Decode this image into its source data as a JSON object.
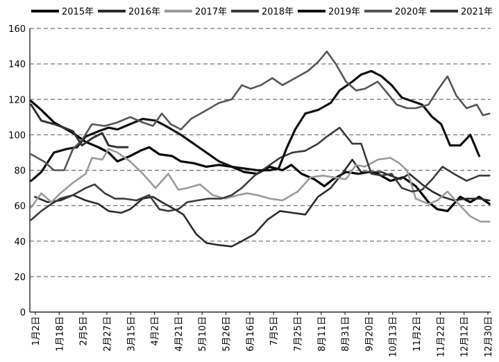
{
  "chart_data": {
    "type": "line",
    "title": "",
    "xlabel": "",
    "ylabel": "",
    "ylim": [
      0,
      160
    ],
    "yticks": [
      0,
      20,
      40,
      60,
      80,
      100,
      120,
      140,
      160
    ],
    "grid": "horizontal-dashed",
    "legend_position": "top",
    "x_tick_labels": [
      "1月2日",
      "1月18日",
      "2月5日",
      "2月27日",
      "3月15日",
      "4月2日",
      "4月21日",
      "5月10日",
      "5月26日",
      "6月16日",
      "7月5日",
      "7月25日",
      "8月11日",
      "8月31日",
      "9月20日",
      "10月13日",
      "11月2日",
      "11月22日",
      "12月12日",
      "12月30日"
    ],
    "x_range": [
      1,
      364
    ],
    "series": [
      {
        "name": "2015年",
        "color": "#000000",
        "width": 3.2,
        "points": [
          [
            2,
            119
          ],
          [
            10,
            114
          ],
          [
            20,
            107
          ],
          [
            35,
            101
          ],
          [
            45,
            96
          ],
          [
            55,
            93
          ],
          [
            63,
            90
          ],
          [
            70,
            85
          ],
          [
            80,
            88
          ],
          [
            88,
            91
          ],
          [
            95,
            93
          ],
          [
            103,
            89
          ],
          [
            113,
            88
          ],
          [
            120,
            85
          ],
          [
            130,
            84
          ],
          [
            140,
            82
          ],
          [
            150,
            83
          ],
          [
            160,
            82
          ],
          [
            170,
            79
          ],
          [
            180,
            78
          ],
          [
            185,
            80
          ],
          [
            190,
            82
          ],
          [
            200,
            80
          ],
          [
            207,
            83
          ],
          [
            215,
            78
          ],
          [
            225,
            75
          ],
          [
            233,
            71
          ],
          [
            240,
            75
          ],
          [
            250,
            79
          ],
          [
            260,
            78
          ],
          [
            268,
            79
          ],
          [
            275,
            78
          ],
          [
            285,
            74
          ],
          [
            295,
            76
          ],
          [
            305,
            71
          ],
          [
            315,
            62
          ],
          [
            322,
            58
          ],
          [
            330,
            57
          ],
          [
            340,
            65
          ],
          [
            348,
            62
          ],
          [
            355,
            65
          ],
          [
            363,
            61
          ]
        ]
      },
      {
        "name": "2016年",
        "color": "#2b2b2b",
        "width": 2.6,
        "points": [
          [
            5,
            65
          ],
          [
            15,
            62
          ],
          [
            25,
            63
          ],
          [
            35,
            66
          ],
          [
            45,
            63
          ],
          [
            55,
            61
          ],
          [
            63,
            57
          ],
          [
            73,
            56
          ],
          [
            80,
            58
          ],
          [
            90,
            64
          ],
          [
            98,
            65
          ],
          [
            105,
            62
          ],
          [
            115,
            58
          ],
          [
            122,
            55
          ],
          [
            132,
            44
          ],
          [
            140,
            39
          ],
          [
            148,
            38
          ],
          [
            160,
            37
          ],
          [
            168,
            40
          ],
          [
            178,
            44
          ],
          [
            188,
            52
          ],
          [
            198,
            57
          ],
          [
            208,
            56
          ],
          [
            218,
            55
          ],
          [
            228,
            65
          ],
          [
            238,
            70
          ],
          [
            248,
            79
          ],
          [
            255,
            86
          ],
          [
            262,
            79
          ],
          [
            270,
            79
          ],
          [
            278,
            79
          ],
          [
            285,
            77
          ],
          [
            293,
            75
          ],
          [
            300,
            78
          ],
          [
            310,
            72
          ],
          [
            318,
            68
          ],
          [
            326,
            65
          ],
          [
            335,
            63
          ],
          [
            345,
            64
          ],
          [
            355,
            64
          ],
          [
            363,
            63
          ]
        ]
      },
      {
        "name": "2017年",
        "color": "#9a9a9a",
        "width": 2.6,
        "points": [
          [
            2,
            59
          ],
          [
            10,
            67
          ],
          [
            18,
            62
          ],
          [
            25,
            67
          ],
          [
            35,
            73
          ],
          [
            45,
            78
          ],
          [
            50,
            87
          ],
          [
            58,
            86
          ],
          [
            63,
            92
          ],
          [
            70,
            90
          ],
          [
            80,
            85
          ],
          [
            90,
            78
          ],
          [
            100,
            70
          ],
          [
            110,
            78
          ],
          [
            118,
            69
          ],
          [
            125,
            70
          ],
          [
            135,
            72
          ],
          [
            145,
            66
          ],
          [
            155,
            64
          ],
          [
            165,
            66
          ],
          [
            172,
            67
          ],
          [
            180,
            66
          ],
          [
            190,
            64
          ],
          [
            200,
            63
          ],
          [
            212,
            68
          ],
          [
            222,
            76
          ],
          [
            232,
            77
          ],
          [
            240,
            76
          ],
          [
            250,
            75
          ],
          [
            258,
            83
          ],
          [
            265,
            82
          ],
          [
            275,
            86
          ],
          [
            285,
            87
          ],
          [
            292,
            84
          ],
          [
            298,
            80
          ],
          [
            305,
            64
          ],
          [
            315,
            61
          ],
          [
            322,
            63
          ],
          [
            330,
            68
          ],
          [
            340,
            60
          ],
          [
            348,
            54
          ],
          [
            356,
            51
          ],
          [
            363,
            51
          ]
        ]
      },
      {
        "name": "2018年",
        "color": "#3a3a3a",
        "width": 2.6,
        "points": [
          [
            2,
            52
          ],
          [
            10,
            57
          ],
          [
            18,
            61
          ],
          [
            25,
            64
          ],
          [
            35,
            66
          ],
          [
            45,
            70
          ],
          [
            52,
            72
          ],
          [
            60,
            67
          ],
          [
            68,
            64
          ],
          [
            75,
            64
          ],
          [
            85,
            63
          ],
          [
            95,
            66
          ],
          [
            103,
            58
          ],
          [
            110,
            57
          ],
          [
            118,
            58
          ],
          [
            125,
            62
          ],
          [
            133,
            63
          ],
          [
            142,
            64
          ],
          [
            152,
            64
          ],
          [
            160,
            66
          ],
          [
            168,
            70
          ],
          [
            178,
            77
          ],
          [
            188,
            82
          ],
          [
            198,
            87
          ],
          [
            208,
            90
          ],
          [
            218,
            91
          ],
          [
            228,
            95
          ],
          [
            235,
            99
          ],
          [
            245,
            104
          ],
          [
            255,
            95
          ],
          [
            262,
            95
          ],
          [
            270,
            78
          ],
          [
            278,
            77
          ],
          [
            286,
            78
          ],
          [
            294,
            70
          ],
          [
            302,
            68
          ],
          [
            310,
            69
          ],
          [
            318,
            75
          ],
          [
            326,
            82
          ],
          [
            335,
            78
          ],
          [
            345,
            74
          ],
          [
            355,
            77
          ],
          [
            363,
            77
          ]
        ]
      },
      {
        "name": "2019年",
        "color": "#111111",
        "width": 3.2,
        "points": [
          [
            2,
            74
          ],
          [
            10,
            79
          ],
          [
            20,
            90
          ],
          [
            30,
            92
          ],
          [
            38,
            93
          ],
          [
            45,
            99
          ],
          [
            55,
            102
          ],
          [
            63,
            104
          ],
          [
            70,
            103
          ],
          [
            80,
            106
          ],
          [
            90,
            109
          ],
          [
            100,
            108
          ],
          [
            108,
            105
          ],
          [
            120,
            100
          ],
          [
            130,
            95
          ],
          [
            140,
            90
          ],
          [
            150,
            85
          ],
          [
            160,
            82
          ],
          [
            170,
            81
          ],
          [
            180,
            80
          ],
          [
            190,
            80
          ],
          [
            197,
            81
          ],
          [
            203,
            92
          ],
          [
            210,
            103
          ],
          [
            218,
            112
          ],
          [
            228,
            114
          ],
          [
            238,
            118
          ],
          [
            245,
            125
          ],
          [
            255,
            130
          ],
          [
            262,
            134
          ],
          [
            270,
            136
          ],
          [
            278,
            133
          ],
          [
            286,
            128
          ],
          [
            294,
            121
          ],
          [
            302,
            119
          ],
          [
            310,
            117
          ],
          [
            318,
            110
          ],
          [
            325,
            106
          ],
          [
            332,
            94
          ],
          [
            340,
            94
          ],
          [
            348,
            100
          ],
          [
            355,
            88
          ]
        ]
      },
      {
        "name": "2020年",
        "color": "#555555",
        "width": 2.6,
        "points": [
          [
            2,
            89
          ],
          [
            12,
            85
          ],
          [
            20,
            80
          ],
          [
            28,
            80
          ],
          [
            35,
            92
          ],
          [
            42,
            97
          ],
          [
            50,
            106
          ],
          [
            60,
            105
          ],
          [
            70,
            107
          ],
          [
            80,
            110
          ],
          [
            90,
            107
          ],
          [
            98,
            105
          ],
          [
            105,
            112
          ],
          [
            112,
            106
          ],
          [
            120,
            103
          ],
          [
            128,
            109
          ],
          [
            138,
            113
          ],
          [
            150,
            118
          ],
          [
            160,
            120
          ],
          [
            168,
            128
          ],
          [
            175,
            126
          ],
          [
            183,
            128
          ],
          [
            192,
            132
          ],
          [
            200,
            128
          ],
          [
            210,
            132
          ],
          [
            220,
            136
          ],
          [
            228,
            141
          ],
          [
            235,
            147
          ],
          [
            242,
            140
          ],
          [
            250,
            130
          ],
          [
            258,
            125
          ],
          [
            265,
            126
          ],
          [
            275,
            130
          ],
          [
            282,
            124
          ],
          [
            290,
            117
          ],
          [
            298,
            115
          ],
          [
            305,
            115
          ],
          [
            315,
            117
          ],
          [
            322,
            125
          ],
          [
            330,
            133
          ],
          [
            337,
            122
          ],
          [
            345,
            115
          ],
          [
            353,
            117
          ],
          [
            358,
            111
          ],
          [
            363,
            112
          ]
        ]
      },
      {
        "name": "2021年",
        "color": "#333333",
        "width": 3.0,
        "points": [
          [
            2,
            117
          ],
          [
            10,
            108
          ],
          [
            20,
            106
          ],
          [
            28,
            104
          ],
          [
            35,
            102
          ],
          [
            42,
            94
          ],
          [
            50,
            98
          ],
          [
            58,
            101
          ],
          [
            63,
            94
          ],
          [
            70,
            93
          ],
          [
            78,
            93
          ]
        ]
      }
    ]
  }
}
